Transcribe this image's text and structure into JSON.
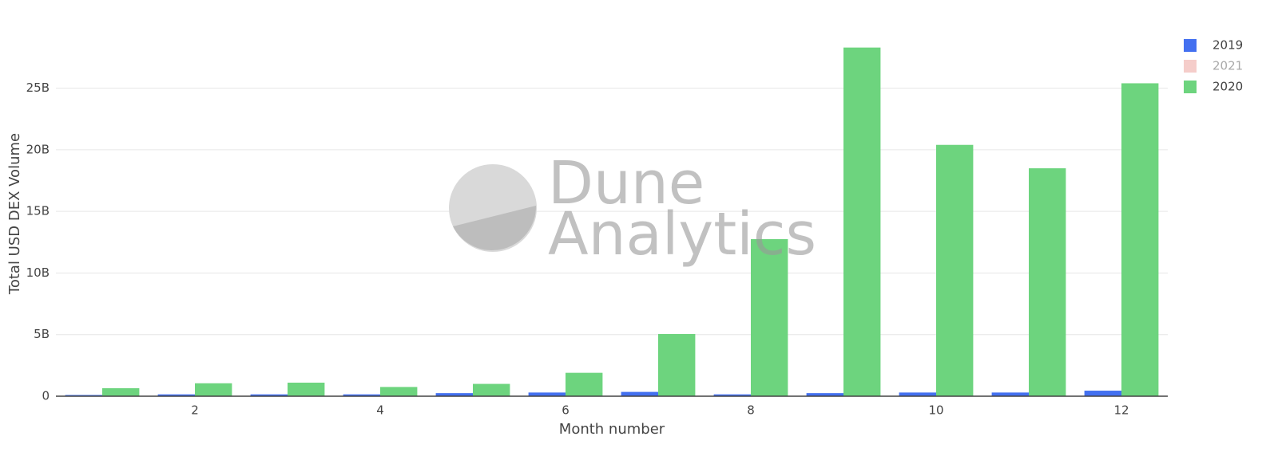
{
  "chart_data": {
    "type": "bar",
    "x_label": "Month number",
    "y_label": "Total USD DEX Volume",
    "watermark": [
      "Dune",
      "Analytics"
    ],
    "x": [
      1,
      2,
      3,
      4,
      5,
      6,
      7,
      8,
      9,
      10,
      11,
      12
    ],
    "series": [
      {
        "name": "2019",
        "color": "#4370f0",
        "values": [
          100000000,
          150000000,
          150000000,
          150000000,
          250000000,
          300000000,
          350000000,
          150000000,
          250000000,
          300000000,
          300000000,
          450000000
        ]
      },
      {
        "name": "2021",
        "color": "#eb9c95",
        "hidden": true,
        "values": [
          null,
          null,
          null,
          null,
          null,
          null,
          null,
          null,
          null,
          null,
          null,
          null
        ]
      },
      {
        "name": "2020",
        "color": "#6dd47e",
        "values": [
          650000000,
          1050000000,
          1100000000,
          750000000,
          1000000000,
          1900000000,
          5050000000,
          12750000000,
          28300000000,
          20400000000,
          18500000000,
          25400000000
        ]
      }
    ],
    "xlim": [
      0.5,
      12.5
    ],
    "xticks": [
      2,
      4,
      6,
      8,
      10,
      12
    ],
    "ylim": [
      0,
      29700000000
    ],
    "yticks": [
      0,
      {
        "value": 5000000000,
        "label": "5B"
      },
      {
        "value": 10000000000,
        "label": "10B"
      },
      {
        "value": 15000000000,
        "label": "15B"
      },
      {
        "value": 20000000000,
        "label": "20B"
      },
      {
        "value": 25000000000,
        "label": "25B"
      }
    ],
    "grid": true,
    "legend": "top-right"
  }
}
